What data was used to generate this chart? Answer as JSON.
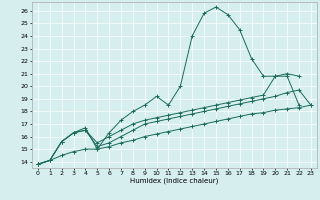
{
  "title": "",
  "xlabel": "Humidex (Indice chaleur)",
  "background_color": "#d6eeee",
  "line_color": "#1a6b5a",
  "xlim": [
    -0.5,
    23.5
  ],
  "ylim": [
    13.5,
    26.7
  ],
  "xticks": [
    0,
    1,
    2,
    3,
    4,
    5,
    6,
    7,
    8,
    9,
    10,
    11,
    12,
    13,
    14,
    15,
    16,
    17,
    18,
    19,
    20,
    21,
    22,
    23
  ],
  "yticks": [
    14,
    15,
    16,
    17,
    18,
    19,
    20,
    21,
    22,
    23,
    24,
    25,
    26
  ],
  "line1_x": [
    0,
    1,
    2,
    3,
    4,
    5,
    6,
    7,
    8,
    9,
    10,
    11,
    12,
    13,
    14,
    15,
    16,
    17,
    18,
    19,
    20,
    21,
    22
  ],
  "line1_y": [
    13.8,
    14.1,
    15.6,
    16.3,
    16.7,
    15.0,
    16.3,
    17.3,
    18.0,
    18.5,
    19.2,
    18.5,
    20.0,
    24.0,
    25.8,
    26.3,
    25.7,
    24.5,
    22.2,
    20.8,
    20.8,
    20.8,
    18.5
  ],
  "line2_x": [
    0,
    1,
    2,
    3,
    4,
    5,
    6,
    7,
    8,
    9,
    10,
    11,
    12,
    13,
    14,
    15,
    16,
    17,
    18,
    19,
    20,
    21,
    22
  ],
  "line2_y": [
    13.8,
    14.1,
    15.6,
    16.3,
    16.5,
    15.5,
    16.0,
    16.5,
    17.0,
    17.3,
    17.5,
    17.7,
    17.9,
    18.1,
    18.3,
    18.5,
    18.7,
    18.9,
    19.1,
    19.3,
    20.8,
    21.0,
    20.8
  ],
  "line3_x": [
    0,
    1,
    2,
    3,
    4,
    5,
    6,
    7,
    8,
    9,
    10,
    11,
    12,
    13,
    14,
    15,
    16,
    17,
    18,
    19,
    20,
    21,
    22,
    23
  ],
  "line3_y": [
    13.8,
    14.1,
    15.6,
    16.3,
    16.5,
    15.2,
    15.5,
    16.0,
    16.5,
    17.0,
    17.2,
    17.4,
    17.6,
    17.8,
    18.0,
    18.2,
    18.4,
    18.6,
    18.8,
    19.0,
    19.2,
    19.5,
    19.7,
    18.5
  ],
  "line4_x": [
    0,
    1,
    2,
    3,
    4,
    5,
    6,
    7,
    8,
    9,
    10,
    11,
    12,
    13,
    14,
    15,
    16,
    17,
    18,
    19,
    20,
    21,
    22,
    23
  ],
  "line4_y": [
    13.8,
    14.1,
    14.5,
    14.8,
    15.0,
    15.0,
    15.2,
    15.5,
    15.7,
    16.0,
    16.2,
    16.4,
    16.6,
    16.8,
    17.0,
    17.2,
    17.4,
    17.6,
    17.8,
    17.9,
    18.1,
    18.2,
    18.3,
    18.5
  ]
}
